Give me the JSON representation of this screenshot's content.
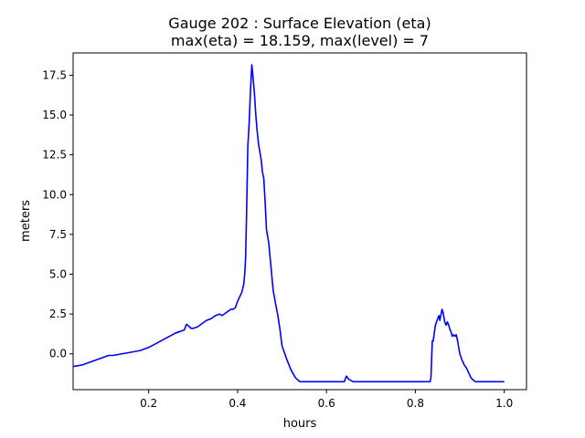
{
  "chart_data": {
    "type": "line",
    "title_line1": "Gauge 202 : Surface Elevation (eta)",
    "title_line2": "max(eta) =  18.159,    max(level) = 7",
    "xlabel": "hours",
    "ylabel": "meters",
    "xlim": [
      0.03,
      1.05
    ],
    "ylim": [
      -2.25,
      18.9
    ],
    "xticks": [
      0.2,
      0.4,
      0.6,
      0.8,
      1.0
    ],
    "xtick_labels": [
      "0.2",
      "0.4",
      "0.6",
      "0.8",
      "1.0"
    ],
    "yticks": [
      0.0,
      2.5,
      5.0,
      7.5,
      10.0,
      12.5,
      15.0,
      17.5
    ],
    "ytick_labels": [
      "0.0",
      "2.5",
      "5.0",
      "7.5",
      "10.0",
      "12.5",
      "15.0",
      "17.5"
    ],
    "grid": false,
    "series": [
      {
        "name": "eta",
        "color": "#0000ff",
        "x": [
          0.03,
          0.05,
          0.07,
          0.09,
          0.11,
          0.12,
          0.14,
          0.16,
          0.18,
          0.2,
          0.22,
          0.24,
          0.26,
          0.28,
          0.285,
          0.29,
          0.295,
          0.3,
          0.31,
          0.32,
          0.33,
          0.34,
          0.35,
          0.36,
          0.365,
          0.37,
          0.375,
          0.38,
          0.385,
          0.39,
          0.395,
          0.4,
          0.405,
          0.41,
          0.414,
          0.416,
          0.418,
          0.42,
          0.423,
          0.426,
          0.429,
          0.432,
          0.435,
          0.438,
          0.441,
          0.444,
          0.447,
          0.45,
          0.453,
          0.456,
          0.459,
          0.462,
          0.465,
          0.47,
          0.475,
          0.48,
          0.485,
          0.49,
          0.495,
          0.5,
          0.51,
          0.52,
          0.53,
          0.54,
          0.545,
          0.55,
          0.6,
          0.64,
          0.645,
          0.65,
          0.66,
          0.7,
          0.75,
          0.8,
          0.833,
          0.835,
          0.838,
          0.84,
          0.845,
          0.85,
          0.853,
          0.855,
          0.857,
          0.86,
          0.863,
          0.866,
          0.869,
          0.872,
          0.875,
          0.878,
          0.88,
          0.883,
          0.886,
          0.889,
          0.892,
          0.895,
          0.898,
          0.9,
          0.905,
          0.91,
          0.915,
          0.92,
          0.925,
          0.93,
          0.935,
          0.94,
          0.945,
          0.95,
          0.96,
          0.97,
          0.98,
          0.99,
          1.0
        ],
        "y": [
          -0.8,
          -0.7,
          -0.5,
          -0.3,
          -0.1,
          -0.1,
          0.0,
          0.1,
          0.2,
          0.4,
          0.7,
          1.0,
          1.3,
          1.5,
          1.85,
          1.75,
          1.6,
          1.6,
          1.7,
          1.9,
          2.1,
          2.2,
          2.4,
          2.5,
          2.4,
          2.5,
          2.6,
          2.7,
          2.8,
          2.8,
          2.9,
          3.3,
          3.6,
          3.9,
          4.4,
          5.0,
          6.0,
          8.5,
          13.0,
          14.5,
          16.5,
          18.159,
          17.3,
          16.3,
          15.0,
          14.0,
          13.2,
          12.7,
          12.2,
          11.4,
          11.0,
          9.5,
          7.8,
          7.0,
          5.5,
          4.0,
          3.2,
          2.5,
          1.6,
          0.5,
          -0.3,
          -1.0,
          -1.5,
          -1.75,
          -1.75,
          -1.75,
          -1.75,
          -1.75,
          -1.4,
          -1.6,
          -1.75,
          -1.75,
          -1.75,
          -1.75,
          -1.75,
          -1.5,
          0.8,
          0.8,
          1.8,
          2.2,
          2.4,
          2.1,
          2.4,
          2.8,
          2.5,
          2.0,
          1.8,
          2.0,
          1.8,
          1.5,
          1.4,
          1.1,
          1.2,
          1.1,
          1.2,
          0.8,
          0.3,
          0.0,
          -0.4,
          -0.7,
          -0.9,
          -1.2,
          -1.5,
          -1.65,
          -1.75,
          -1.75,
          -1.75,
          -1.75,
          -1.75,
          -1.75,
          -1.75,
          -1.75,
          -1.75
        ]
      }
    ]
  }
}
